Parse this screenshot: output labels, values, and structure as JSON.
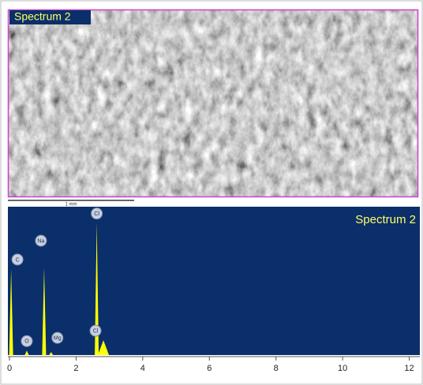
{
  "image": {
    "label": "Spectrum 2",
    "scale_bar": "1 mm"
  },
  "chart_data": {
    "type": "spectrum",
    "title": "Spectrum 2",
    "x": [
      0.05,
      0.52,
      1.04,
      1.25,
      2.62,
      2.82
    ],
    "values": [
      58,
      3,
      59,
      2,
      89,
      10
    ],
    "peak_labels": [
      "C",
      "O",
      "Na",
      "Mg",
      "Cl",
      "Cl"
    ],
    "color": "#ffff00",
    "background": "#0b2f6a",
    "xlim": [
      0,
      12.2
    ],
    "ylim": [
      0,
      100
    ],
    "xticks": [
      0,
      2,
      4,
      6,
      8,
      10,
      12
    ]
  }
}
